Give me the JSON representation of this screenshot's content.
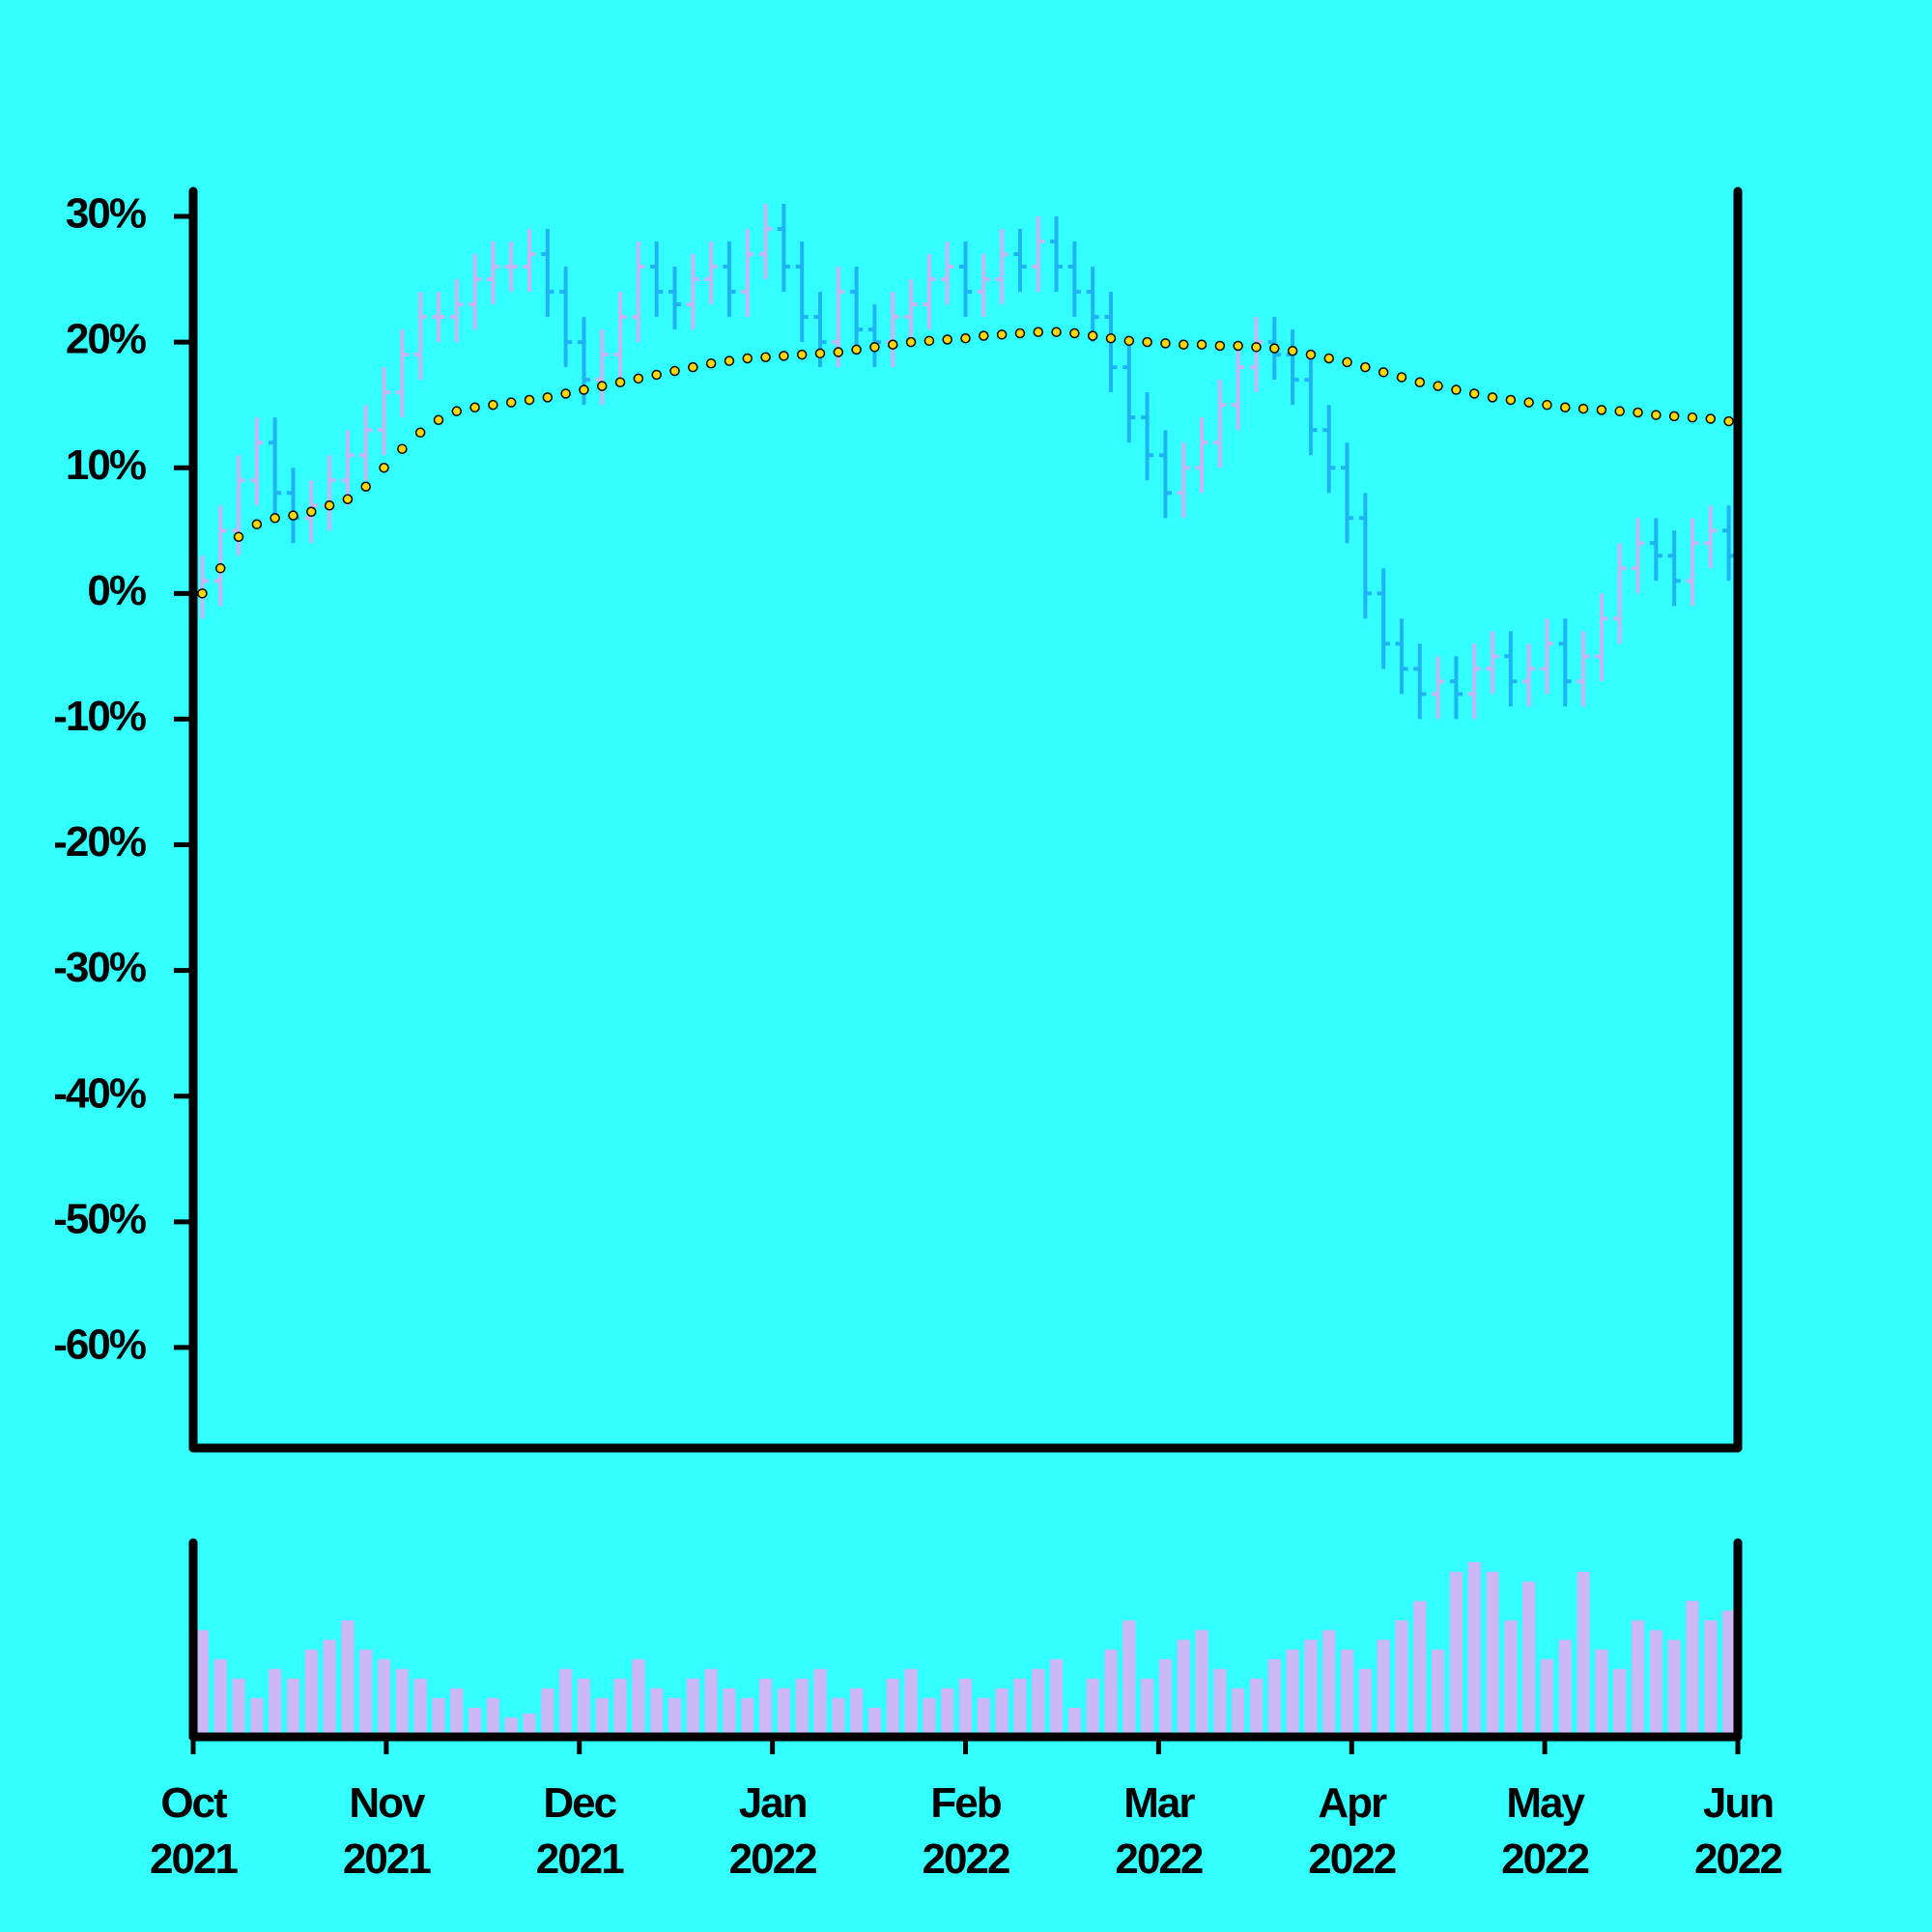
{
  "chart_data": {
    "type": "ohlc",
    "up_color": "#c8b6f2",
    "down_color": "#1fb2f5",
    "open": [
      0,
      1,
      5,
      9,
      12,
      8,
      6,
      7,
      9,
      11,
      13,
      16,
      19,
      22,
      22,
      23,
      25,
      26,
      26,
      27,
      24,
      20,
      17,
      19,
      22,
      26,
      24,
      23,
      25,
      26,
      24,
      27,
      29,
      26,
      22,
      20,
      24,
      21,
      20,
      22,
      23,
      25,
      26,
      24,
      25,
      27,
      26,
      28,
      26,
      24,
      22,
      18,
      14,
      11,
      8,
      10,
      12,
      15,
      18,
      20,
      19,
      17,
      13,
      10,
      6,
      0,
      -4,
      -6,
      -8,
      -7,
      -8,
      -6,
      -5,
      -7,
      -6,
      -4,
      -7,
      -5,
      -2,
      2,
      4,
      3,
      1,
      4,
      5
    ],
    "high": [
      3,
      7,
      11,
      14,
      14,
      10,
      9,
      11,
      13,
      15,
      18,
      21,
      24,
      24,
      25,
      27,
      28,
      28,
      29,
      29,
      26,
      22,
      21,
      24,
      28,
      28,
      26,
      27,
      28,
      28,
      29,
      31,
      31,
      28,
      24,
      26,
      26,
      23,
      24,
      25,
      27,
      28,
      28,
      27,
      29,
      29,
      30,
      30,
      28,
      26,
      24,
      20,
      16,
      13,
      12,
      14,
      17,
      20,
      22,
      22,
      21,
      19,
      15,
      12,
      8,
      2,
      -2,
      -4,
      -5,
      -5,
      -4,
      -3,
      -3,
      -4,
      -2,
      -2,
      -3,
      0,
      4,
      6,
      6,
      5,
      6,
      7,
      7
    ],
    "low": [
      -2,
      -1,
      3,
      7,
      6,
      4,
      4,
      5,
      7,
      9,
      11,
      14,
      17,
      20,
      20,
      21,
      23,
      24,
      24,
      22,
      18,
      15,
      15,
      17,
      20,
      22,
      21,
      21,
      23,
      22,
      22,
      25,
      24,
      20,
      18,
      18,
      19,
      18,
      18,
      20,
      21,
      23,
      22,
      22,
      23,
      24,
      24,
      24,
      22,
      20,
      16,
      12,
      9,
      6,
      6,
      8,
      10,
      13,
      16,
      17,
      15,
      11,
      8,
      4,
      -2,
      -6,
      -8,
      -10,
      -10,
      -10,
      -10,
      -8,
      -9,
      -9,
      -8,
      -9,
      -9,
      -7,
      -4,
      0,
      1,
      -1,
      -1,
      2,
      1
    ],
    "close": [
      1,
      5,
      9,
      12,
      8,
      6,
      7,
      9,
      11,
      13,
      16,
      19,
      22,
      22,
      23,
      25,
      26,
      26,
      27,
      24,
      20,
      17,
      19,
      22,
      26,
      24,
      23,
      25,
      26,
      24,
      27,
      29,
      26,
      22,
      20,
      24,
      21,
      20,
      22,
      23,
      25,
      26,
      24,
      25,
      27,
      26,
      28,
      26,
      24,
      22,
      18,
      14,
      11,
      8,
      10,
      12,
      15,
      18,
      20,
      19,
      17,
      13,
      10,
      6,
      0,
      -4,
      -6,
      -8,
      -7,
      -8,
      -6,
      -5,
      -7,
      -6,
      -4,
      -7,
      -5,
      -2,
      2,
      4,
      3,
      1,
      4,
      5,
      3
    ],
    "ma": {
      "color": "#ffd600",
      "values": [
        0,
        2,
        4.5,
        5.5,
        6,
        6.2,
        6.5,
        7,
        7.5,
        8.5,
        10,
        11.5,
        12.8,
        13.8,
        14.5,
        14.8,
        15,
        15.2,
        15.4,
        15.6,
        15.9,
        16.2,
        16.5,
        16.8,
        17.1,
        17.4,
        17.7,
        18,
        18.3,
        18.5,
        18.7,
        18.8,
        18.9,
        19,
        19.1,
        19.2,
        19.4,
        19.6,
        19.8,
        20,
        20.1,
        20.2,
        20.3,
        20.5,
        20.6,
        20.7,
        20.8,
        20.8,
        20.7,
        20.5,
        20.3,
        20.1,
        20,
        19.9,
        19.8,
        19.8,
        19.7,
        19.7,
        19.6,
        19.5,
        19.3,
        19,
        18.7,
        18.4,
        18,
        17.6,
        17.2,
        16.8,
        16.5,
        16.2,
        15.9,
        15.6,
        15.4,
        15.2,
        15,
        14.8,
        14.7,
        14.6,
        14.5,
        14.4,
        14.2,
        14.1,
        14,
        13.9,
        13.7
      ]
    },
    "volume": {
      "color": "#ccb8f4",
      "ylim": [
        0,
        100
      ],
      "values": [
        55,
        40,
        30,
        20,
        35,
        30,
        45,
        50,
        60,
        45,
        40,
        35,
        30,
        20,
        25,
        15,
        20,
        10,
        12,
        25,
        35,
        30,
        20,
        30,
        40,
        25,
        20,
        30,
        35,
        25,
        20,
        30,
        25,
        30,
        35,
        20,
        25,
        15,
        30,
        35,
        20,
        25,
        30,
        20,
        25,
        30,
        35,
        40,
        15,
        30,
        45,
        60,
        30,
        40,
        50,
        55,
        35,
        25,
        30,
        40,
        45,
        50,
        55,
        45,
        35,
        50,
        60,
        70,
        45,
        85,
        90,
        85,
        60,
        80,
        40,
        50,
        85,
        45,
        35,
        60,
        55,
        50,
        70,
        60,
        65
      ]
    },
    "ylim": [
      -68,
      32
    ],
    "yticks": [
      {
        "value": 30,
        "label": "30%"
      },
      {
        "value": 20,
        "label": "20%"
      },
      {
        "value": 10,
        "label": "10%"
      },
      {
        "value": 0,
        "label": "0%"
      },
      {
        "value": -10,
        "label": "-10%"
      },
      {
        "value": -20,
        "label": "-20%"
      },
      {
        "value": -30,
        "label": "-30%"
      },
      {
        "value": -40,
        "label": "-40%"
      },
      {
        "value": -50,
        "label": "-50%"
      },
      {
        "value": -60,
        "label": "-60%"
      }
    ],
    "xlim": [
      -0.5,
      84.5
    ],
    "xticks": [
      {
        "value": -0.5,
        "label": "Oct\n2021"
      },
      {
        "value": 10.125,
        "label": "Nov\n2021"
      },
      {
        "value": 20.75,
        "label": "Dec\n2021"
      },
      {
        "value": 31.375,
        "label": "Jan\n2022"
      },
      {
        "value": 42,
        "label": "Feb\n2022"
      },
      {
        "value": 52.625,
        "label": "Mar\n2022"
      },
      {
        "value": 63.25,
        "label": "Apr\n2022"
      },
      {
        "value": 73.875,
        "label": "May\n2022"
      },
      {
        "value": 84.5,
        "label": "Jun\n2022"
      }
    ]
  }
}
